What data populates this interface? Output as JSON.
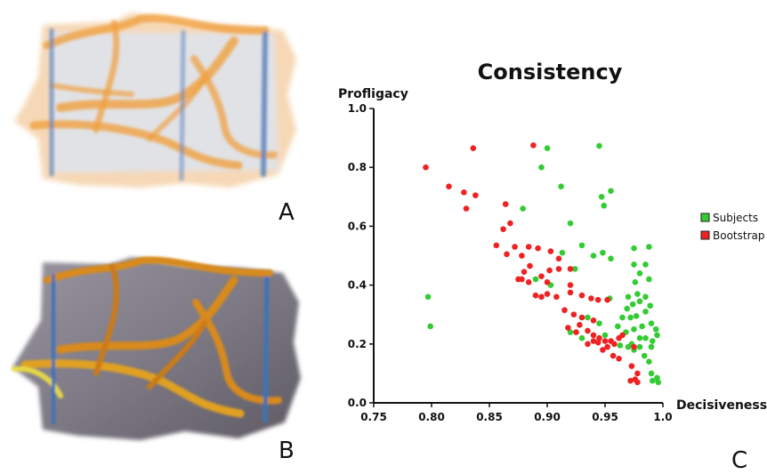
{
  "panels": {
    "a_label": "A",
    "b_label": "B",
    "c_label": "C"
  },
  "colors": {
    "subjects": "#33cc33",
    "bootstrap": "#ee2222",
    "render_a_bg": "#dde4ee",
    "render_a_band": "#f0a040",
    "render_a_line": "#5b84bb",
    "render_b_bg": "#8c8892",
    "render_b_band": "#d88a1a",
    "render_b_line": "#3d73b8"
  },
  "chart_data": {
    "type": "scatter",
    "title": "Consistency",
    "xlabel": "Decisiveness",
    "ylabel": "Profligacy",
    "xlim": [
      0.75,
      1.0
    ],
    "ylim": [
      0.0,
      1.0
    ],
    "xticks": [
      "0.75",
      "0.80",
      "0.85",
      "0.90",
      "0.95",
      "1.0"
    ],
    "yticks": [
      "0.0",
      "0.2",
      "0.4",
      "0.6",
      "0.8",
      "1.0"
    ],
    "grid": false,
    "legend_position": "right",
    "series": [
      {
        "name": "Subjects",
        "color": "#33cc33",
        "points": [
          [
            0.797,
            0.36
          ],
          [
            0.799,
            0.26
          ],
          [
            0.895,
            0.8
          ],
          [
            0.9,
            0.865
          ],
          [
            0.945,
            0.873
          ],
          [
            0.912,
            0.735
          ],
          [
            0.947,
            0.7
          ],
          [
            0.955,
            0.72
          ],
          [
            0.949,
            0.67
          ],
          [
            0.879,
            0.66
          ],
          [
            0.92,
            0.61
          ],
          [
            0.913,
            0.51
          ],
          [
            0.93,
            0.535
          ],
          [
            0.94,
            0.5
          ],
          [
            0.948,
            0.51
          ],
          [
            0.924,
            0.455
          ],
          [
            0.955,
            0.49
          ],
          [
            0.975,
            0.525
          ],
          [
            0.988,
            0.53
          ],
          [
            0.985,
            0.47
          ],
          [
            0.975,
            0.47
          ],
          [
            0.98,
            0.44
          ],
          [
            0.976,
            0.41
          ],
          [
            0.988,
            0.42
          ],
          [
            0.89,
            0.42
          ],
          [
            0.903,
            0.4
          ],
          [
            0.954,
            0.355
          ],
          [
            0.97,
            0.36
          ],
          [
            0.978,
            0.37
          ],
          [
            0.985,
            0.36
          ],
          [
            0.98,
            0.345
          ],
          [
            0.974,
            0.335
          ],
          [
            0.969,
            0.32
          ],
          [
            0.965,
            0.29
          ],
          [
            0.972,
            0.29
          ],
          [
            0.977,
            0.295
          ],
          [
            0.985,
            0.31
          ],
          [
            0.989,
            0.33
          ],
          [
            0.961,
            0.26
          ],
          [
            0.968,
            0.24
          ],
          [
            0.975,
            0.25
          ],
          [
            0.982,
            0.26
          ],
          [
            0.99,
            0.27
          ],
          [
            0.994,
            0.25
          ],
          [
            0.995,
            0.23
          ],
          [
            0.991,
            0.21
          ],
          [
            0.985,
            0.22
          ],
          [
            0.98,
            0.22
          ],
          [
            0.973,
            0.2
          ],
          [
            0.97,
            0.19
          ],
          [
            0.963,
            0.195
          ],
          [
            0.975,
            0.18
          ],
          [
            0.98,
            0.19
          ],
          [
            0.99,
            0.19
          ],
          [
            0.984,
            0.16
          ],
          [
            0.988,
            0.14
          ],
          [
            0.99,
            0.1
          ],
          [
            0.995,
            0.085
          ],
          [
            0.996,
            0.07
          ],
          [
            0.991,
            0.075
          ],
          [
            0.92,
            0.24
          ],
          [
            0.935,
            0.29
          ],
          [
            0.945,
            0.27
          ],
          [
            0.93,
            0.22
          ],
          [
            0.95,
            0.23
          ]
        ]
      },
      {
        "name": "Bootstrap",
        "color": "#ee2222",
        "points": [
          [
            0.795,
            0.8
          ],
          [
            0.815,
            0.735
          ],
          [
            0.828,
            0.715
          ],
          [
            0.836,
            0.865
          ],
          [
            0.838,
            0.705
          ],
          [
            0.83,
            0.66
          ],
          [
            0.888,
            0.875
          ],
          [
            0.864,
            0.675
          ],
          [
            0.868,
            0.61
          ],
          [
            0.862,
            0.59
          ],
          [
            0.856,
            0.535
          ],
          [
            0.872,
            0.53
          ],
          [
            0.884,
            0.53
          ],
          [
            0.892,
            0.525
          ],
          [
            0.865,
            0.505
          ],
          [
            0.878,
            0.5
          ],
          [
            0.903,
            0.515
          ],
          [
            0.91,
            0.49
          ],
          [
            0.885,
            0.465
          ],
          [
            0.902,
            0.45
          ],
          [
            0.91,
            0.455
          ],
          [
            0.92,
            0.455
          ],
          [
            0.88,
            0.445
          ],
          [
            0.875,
            0.42
          ],
          [
            0.895,
            0.43
          ],
          [
            0.9,
            0.41
          ],
          [
            0.878,
            0.42
          ],
          [
            0.92,
            0.4
          ],
          [
            0.884,
            0.41
          ],
          [
            0.9,
            0.37
          ],
          [
            0.908,
            0.36
          ],
          [
            0.89,
            0.365
          ],
          [
            0.895,
            0.36
          ],
          [
            0.92,
            0.375
          ],
          [
            0.93,
            0.365
          ],
          [
            0.938,
            0.355
          ],
          [
            0.944,
            0.35
          ],
          [
            0.952,
            0.35
          ],
          [
            0.915,
            0.315
          ],
          [
            0.923,
            0.3
          ],
          [
            0.93,
            0.29
          ],
          [
            0.94,
            0.28
          ],
          [
            0.928,
            0.265
          ],
          [
            0.918,
            0.255
          ],
          [
            0.925,
            0.24
          ],
          [
            0.935,
            0.245
          ],
          [
            0.94,
            0.23
          ],
          [
            0.945,
            0.22
          ],
          [
            0.944,
            0.205
          ],
          [
            0.95,
            0.21
          ],
          [
            0.955,
            0.21
          ],
          [
            0.948,
            0.18
          ],
          [
            0.957,
            0.16
          ],
          [
            0.962,
            0.15
          ],
          [
            0.965,
            0.23
          ],
          [
            0.975,
            0.19
          ],
          [
            0.973,
            0.125
          ],
          [
            0.978,
            0.1
          ],
          [
            0.976,
            0.08
          ],
          [
            0.972,
            0.075
          ],
          [
            0.978,
            0.07
          ],
          [
            0.962,
            0.22
          ],
          [
            0.958,
            0.2
          ],
          [
            0.952,
            0.19
          ],
          [
            0.94,
            0.21
          ],
          [
            0.935,
            0.2
          ]
        ]
      }
    ]
  }
}
